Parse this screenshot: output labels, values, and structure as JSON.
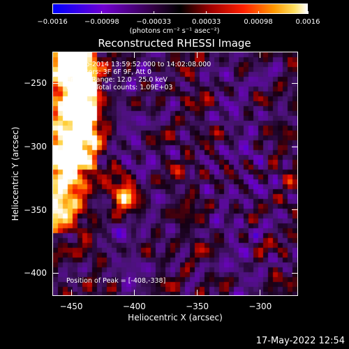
{
  "colorbar": {
    "tick_labels": [
      "−0.0016",
      "−0.00098",
      "−0.00033",
      "0.00033",
      "0.00098",
      "0.0016"
    ],
    "tick_values": [
      -0.0016,
      -0.00098,
      -0.00033,
      0.00033,
      0.00098,
      0.0016
    ],
    "range": [
      -0.0016,
      0.0016
    ],
    "units": "(photons cm⁻² s⁻¹ asec⁻²)",
    "colors": [
      "#0000ff",
      "#8000c0",
      "#200020",
      "#000000",
      "#a00000",
      "#ff2000",
      "#ff9000",
      "#ffd040",
      "#ffffff"
    ]
  },
  "chart_data": {
    "type": "heatmap",
    "title": "Reconstructed RHESSI Image",
    "xlabel": "Heliocentric X (arcsec)",
    "ylabel": "Heliocentric Y (arcsec)",
    "x_ticks": [
      -450,
      -400,
      -350,
      -300
    ],
    "y_ticks": [
      -250,
      -300,
      -350,
      -400
    ],
    "xlim": [
      -465,
      -270
    ],
    "ylim": [
      -418,
      -225
    ],
    "annotations": [
      "24-Sep-2014 13:59:52.000 to 14:02:08.000",
      "Detectors: 3F 6F 9F, Att 0",
      "Energy Range: 12.0 - 25.0 keV",
      "Clean     Total counts: 1.09E+03"
    ],
    "peak_label": "Position of Peak = [-408,-338]",
    "peak": [
      -408,
      -338
    ],
    "source_region": "bright emission arc along left side, peak near (-408,-338)"
  },
  "footer": {
    "timestamp": "17-May-2022 12:54"
  }
}
